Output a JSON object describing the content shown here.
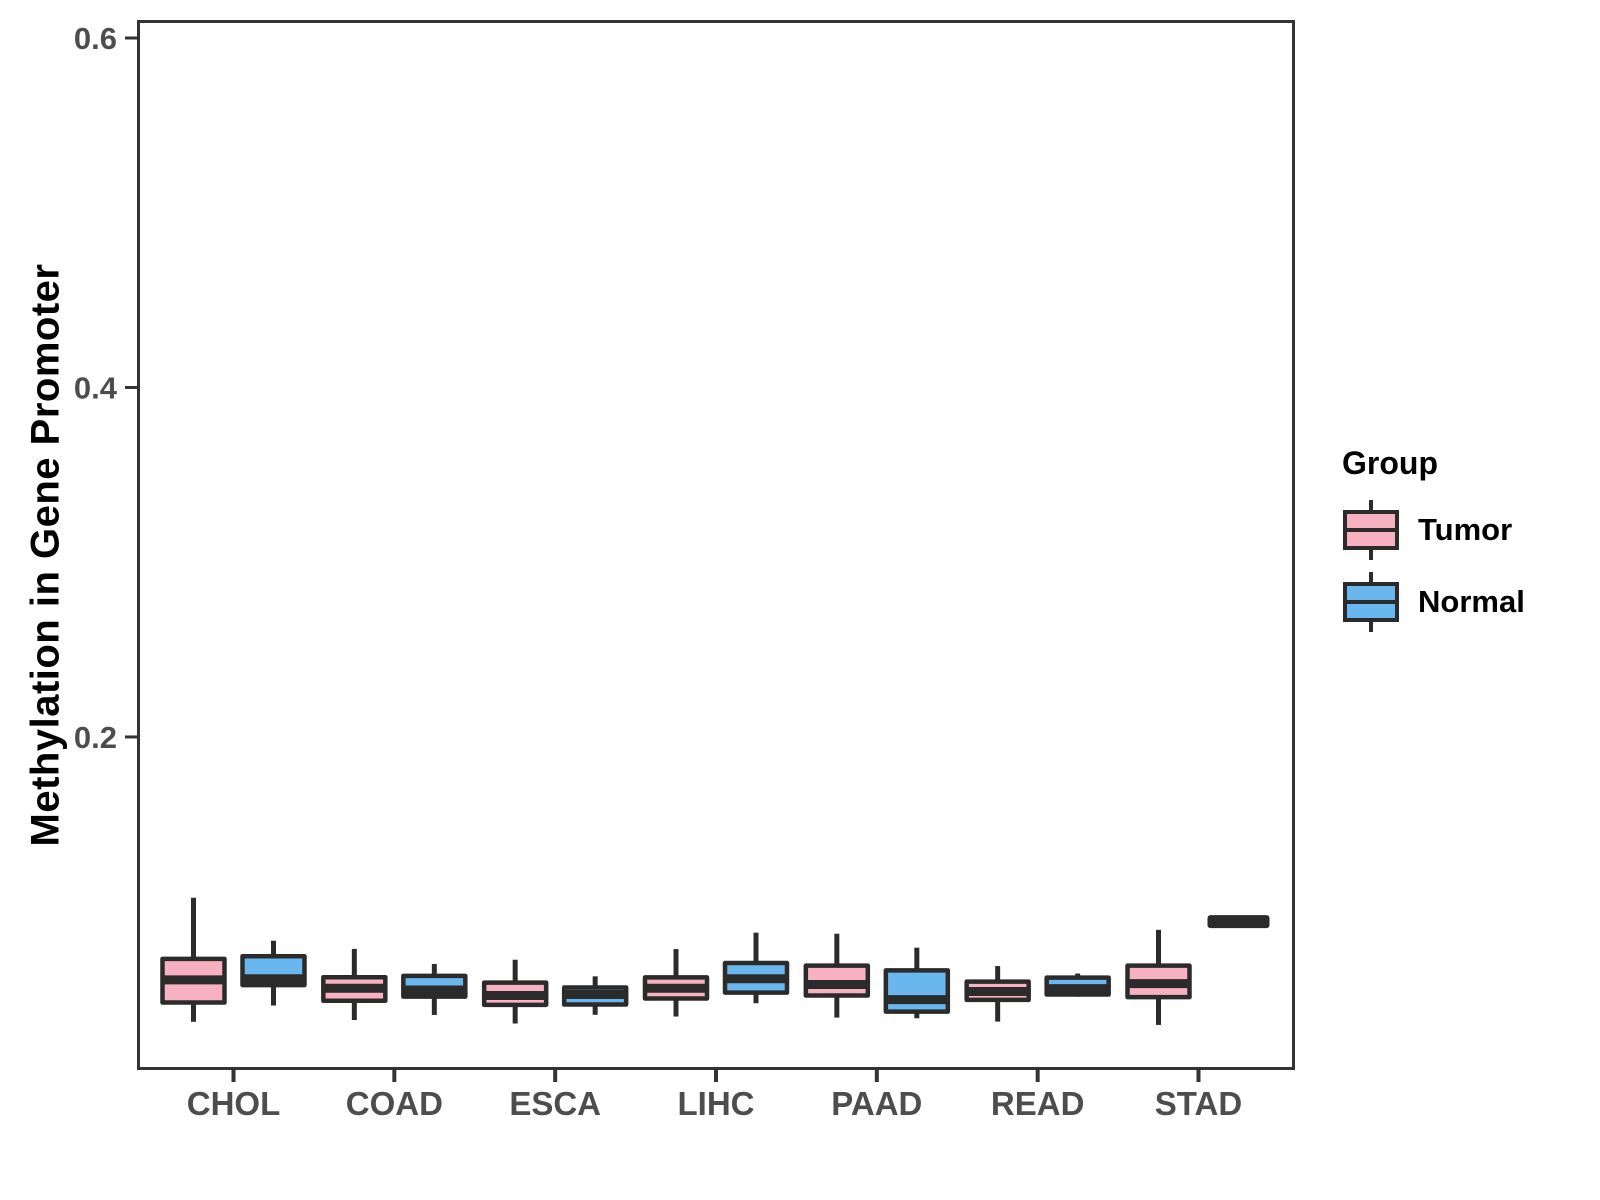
{
  "y_axis": {
    "title": "Methylation in Gene Promoter"
  },
  "legend": {
    "title": "Group",
    "items": [
      {
        "label": "Tumor",
        "color": "#F8B1C0"
      },
      {
        "label": "Normal",
        "color": "#6AB6EE"
      }
    ]
  },
  "colors": {
    "tumor_fill": "#F8B1C0",
    "normal_fill": "#6AB6EE",
    "box_stroke": "#2B2B2B",
    "panel_border": "#333333",
    "axis_text": "#4D4D4D",
    "title_text": "#000000"
  },
  "chart_data": {
    "type": "boxplot",
    "title": "",
    "xlabel": "",
    "ylabel": "Methylation in Gene Promoter",
    "categories": [
      "CHOL",
      "COAD",
      "ESCA",
      "LIHC",
      "PAAD",
      "READ",
      "STAD"
    ],
    "groups": [
      "Tumor",
      "Normal"
    ],
    "ylim": [
      0.0094,
      0.6103
    ],
    "yticks": [
      {
        "value": 0.2,
        "label": "0.2"
      },
      {
        "value": 0.4,
        "label": "0.4"
      },
      {
        "value": 0.6,
        "label": "0.6"
      }
    ],
    "grid": false,
    "legend_position": "right",
    "series": [
      {
        "name": "Tumor",
        "color": "#F8B1C0",
        "boxes": [
          {
            "category": "CHOL",
            "min": 0.037,
            "q1": 0.048,
            "median": 0.061,
            "q3": 0.073,
            "max": 0.108
          },
          {
            "category": "COAD",
            "min": 0.038,
            "q1": 0.049,
            "median": 0.0562,
            "q3": 0.0625,
            "max": 0.0787
          },
          {
            "category": "ESCA",
            "min": 0.036,
            "q1": 0.0467,
            "median": 0.052,
            "q3": 0.0594,
            "max": 0.0725
          },
          {
            "category": "LIHC",
            "min": 0.04,
            "q1": 0.0503,
            "median": 0.0562,
            "q3": 0.0624,
            "max": 0.0786
          },
          {
            "category": "PAAD",
            "min": 0.0394,
            "q1": 0.052,
            "median": 0.0583,
            "q3": 0.0691,
            "max": 0.0874
          },
          {
            "category": "READ",
            "min": 0.0371,
            "q1": 0.0495,
            "median": 0.0543,
            "q3": 0.06,
            "max": 0.0689
          },
          {
            "category": "STAD",
            "min": 0.0352,
            "q1": 0.0511,
            "median": 0.0588,
            "q3": 0.0691,
            "max": 0.0896
          }
        ]
      },
      {
        "name": "Normal",
        "color": "#6AB6EE",
        "boxes": [
          {
            "category": "CHOL",
            "min": 0.0463,
            "q1": 0.058,
            "median": 0.0616,
            "q3": 0.0745,
            "max": 0.0834
          },
          {
            "category": "COAD",
            "min": 0.0409,
            "q1": 0.0514,
            "median": 0.0552,
            "q3": 0.0633,
            "max": 0.0701
          },
          {
            "category": "ESCA",
            "min": 0.041,
            "q1": 0.0469,
            "median": 0.0526,
            "q3": 0.0566,
            "max": 0.063
          },
          {
            "category": "LIHC",
            "min": 0.0476,
            "q1": 0.0537,
            "median": 0.0616,
            "q3": 0.0706,
            "max": 0.088
          },
          {
            "category": "PAAD",
            "min": 0.039,
            "q1": 0.0428,
            "median": 0.0497,
            "q3": 0.0664,
            "max": 0.0794
          },
          {
            "category": "READ",
            "min": 0.0514,
            "q1": 0.0526,
            "median": 0.056,
            "q3": 0.0623,
            "max": 0.0646
          },
          {
            "category": "STAD",
            "min": 0.0943,
            "q1": 0.0943,
            "median": 0.0943,
            "q3": 0.0943,
            "max": 0.0943
          }
        ]
      }
    ]
  }
}
